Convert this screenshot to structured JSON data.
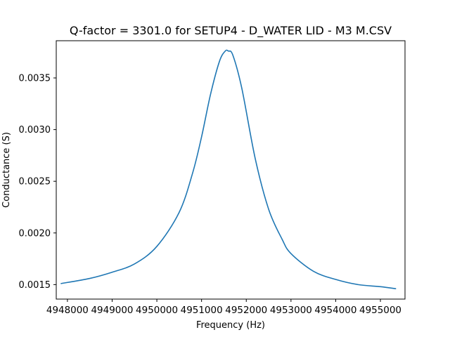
{
  "chart_data": {
    "type": "line",
    "title": "Q-factor = 3301.0 for SETUP4 - D_WATER LID - M3 M.CSV",
    "xlabel": "Frequency (Hz)",
    "ylabel": "Conductance (S)",
    "xlim": [
      4947750,
      4955550
    ],
    "ylim": [
      0.00136,
      0.00386
    ],
    "x_ticks": [
      4948000,
      4949000,
      4950000,
      4951000,
      4952000,
      4953000,
      4954000,
      4955000
    ],
    "x_tick_labels": [
      "4948000",
      "4949000",
      "4950000",
      "4951000",
      "4952000",
      "4953000",
      "4954000",
      "4955000"
    ],
    "y_ticks": [
      0.0015,
      0.002,
      0.0025,
      0.003,
      0.0035
    ],
    "y_tick_labels": [
      "0.0015",
      "0.0020",
      "0.0025",
      "0.0030",
      "0.0035"
    ],
    "grid": false,
    "series": [
      {
        "color": "#1f77b4",
        "x": [
          4947850,
          4948500,
          4949000,
          4949500,
          4950000,
          4950500,
          4950800,
          4951000,
          4951200,
          4951400,
          4951530,
          4951600,
          4951700,
          4951900,
          4952200,
          4952500,
          4952800,
          4953000,
          4953500,
          4954000,
          4954500,
          4955000,
          4955350
        ],
        "y": [
          0.00151,
          0.00156,
          0.00162,
          0.0017,
          0.00187,
          0.0022,
          0.00258,
          0.00293,
          0.00334,
          0.00366,
          0.00376,
          0.00376,
          0.00372,
          0.0034,
          0.00272,
          0.00223,
          0.00194,
          0.0018,
          0.00163,
          0.00155,
          0.0015,
          0.00148,
          0.00146
        ]
      }
    ]
  }
}
